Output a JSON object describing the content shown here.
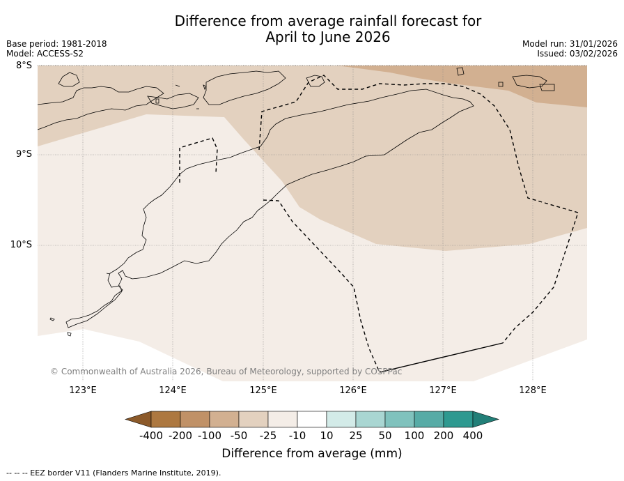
{
  "title_line1": "Difference from average rainfall forecast for",
  "title_line2": "April to June 2026",
  "base_period": "Base period: 1981-2018",
  "model": "Model: ACCESS-S2",
  "model_run": "Model run: 31/01/2026",
  "issued": "Issued: 03/02/2026",
  "lat_labels": [
    "8°S",
    "9°S",
    "10°S"
  ],
  "lon_labels": [
    "123°E",
    "124°E",
    "125°E",
    "126°E",
    "127°E",
    "128°E"
  ],
  "credit": "© Commonwealth of Australia 2026, Bureau of Meteorology, supported by COSPPac",
  "legend": {
    "ticks": [
      "-400",
      "-200",
      "-100",
      "-50",
      "-25",
      "-10",
      "10",
      "25",
      "50",
      "100",
      "200",
      "400"
    ],
    "label": "Difference from average (mm)",
    "colors": [
      "#8c5a2a",
      "#ad7840",
      "#c09167",
      "#d2b091",
      "#e3d1bf",
      "#f4ede7",
      "#ffffff",
      "#d3ebe8",
      "#a9d6d2",
      "#80c2bd",
      "#57aba6",
      "#2e9990",
      "#227f78"
    ]
  },
  "zones": {
    "zone_minus_100": "#d2b091",
    "zone_minus_50": "#e3d1bf",
    "zone_minus_25": "#f4ede7"
  },
  "footnote": "--  --  -- EEZ border V11 (Flanders Marine Institute, 2019)."
}
